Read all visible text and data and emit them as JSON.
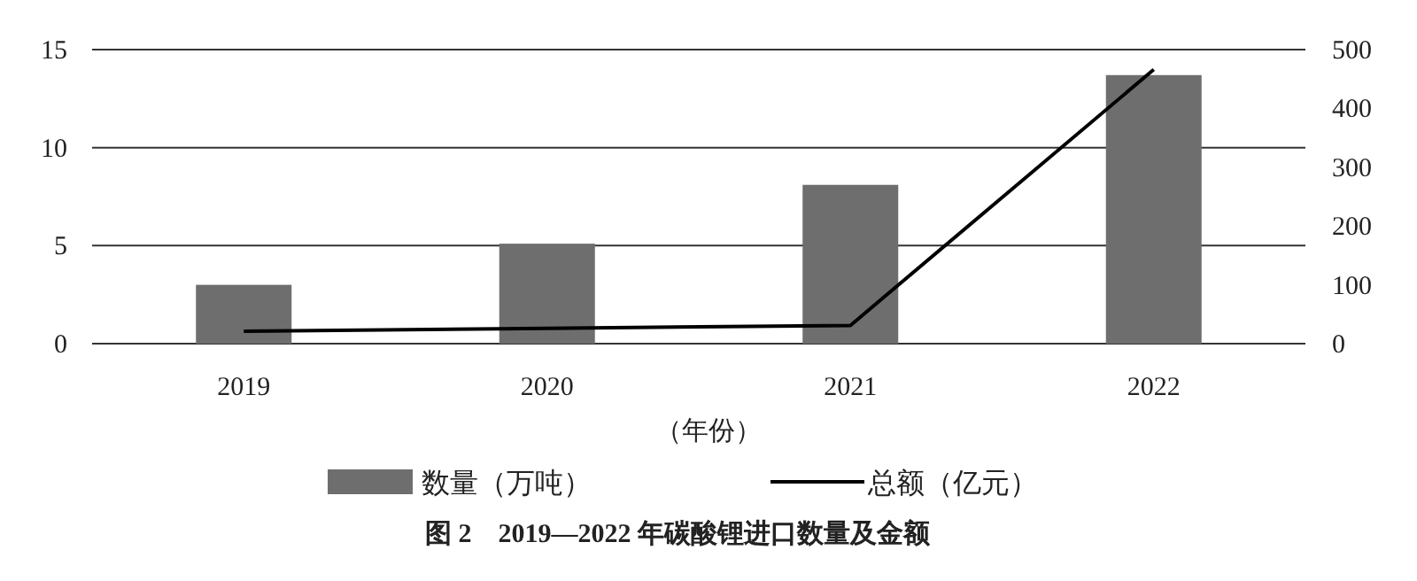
{
  "chart_data": {
    "type": "bar",
    "title": "图 2　2019—2022 年碳酸锂进口数量及金额",
    "xlabel": "（年份）",
    "categories": [
      "2019",
      "2020",
      "2021",
      "2022"
    ],
    "series": [
      {
        "name": "数量（万吨）",
        "color": "#6e6e6e",
        "values": [
          3.0,
          5.1,
          8.1,
          13.7
        ]
      },
      {
        "name": "总额（亿元）",
        "type": "line",
        "axis": "y2",
        "color": "#000000",
        "values": [
          21,
          26,
          31,
          466
        ]
      }
    ],
    "ylim": [
      0,
      15
    ],
    "yticks": [
      0,
      5,
      10,
      15
    ],
    "y2lim": [
      0,
      500
    ],
    "y2ticks": [
      0,
      100,
      200,
      300,
      400,
      500
    ],
    "grid": "y",
    "legend": "bottom",
    "marker": "none",
    "line_style": "solid"
  }
}
